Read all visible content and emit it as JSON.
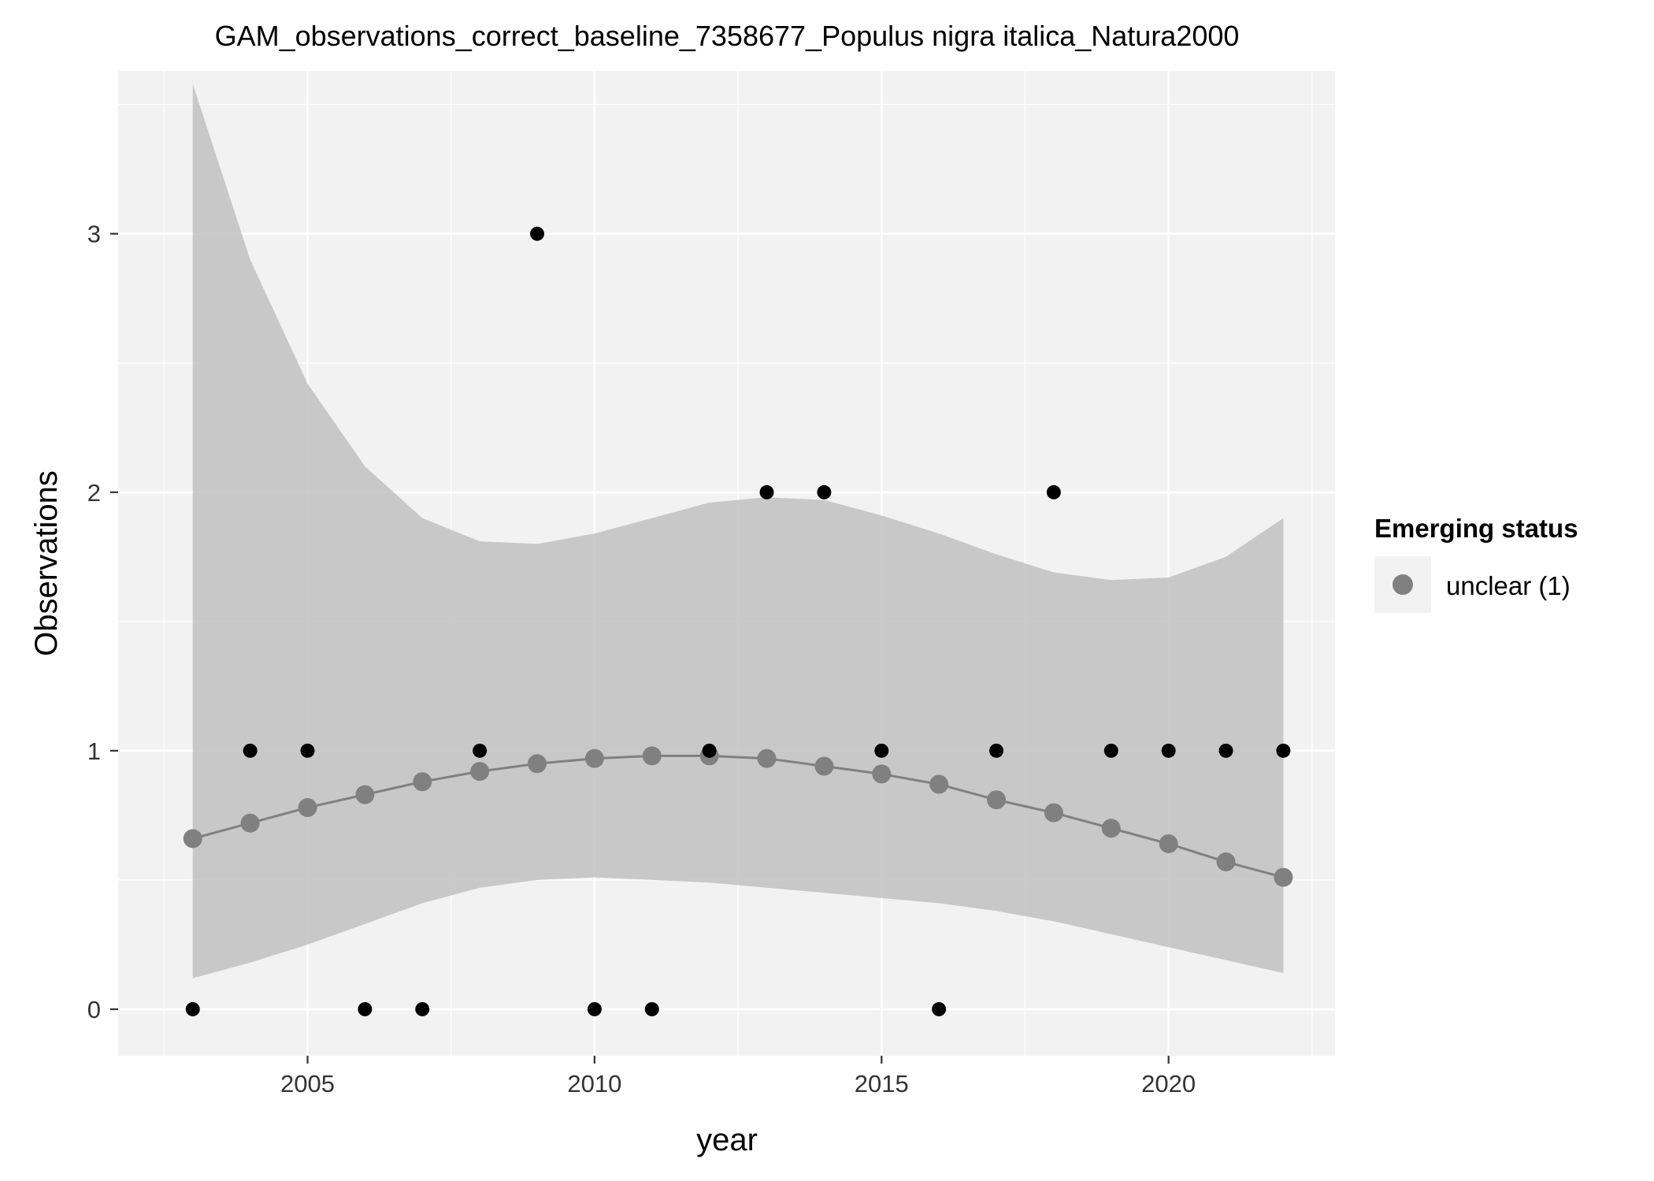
{
  "chart_data": {
    "type": "scatter",
    "title": "GAM_observations_correct_baseline_7358677_Populus nigra italica_Natura2000",
    "xlabel": "year",
    "ylabel": "Observations",
    "xlim": [
      2001.7,
      2022.9
    ],
    "ylim": [
      -0.18,
      3.63
    ],
    "x_ticks": [
      2005,
      2010,
      2015,
      2020
    ],
    "y_ticks": [
      0,
      1,
      2,
      3
    ],
    "grid": true,
    "legend": {
      "title": "Emerging status",
      "position": "right",
      "entries": [
        {
          "label": "unclear (1)",
          "color": "#808080"
        }
      ]
    },
    "colors": {
      "panel_background": "#f2f2f2",
      "grid": "#ffffff",
      "observed_points": "#000000",
      "fit_line_and_points": "#808080",
      "confidence_band": "#bdbdbd"
    },
    "observed": {
      "x": [
        2003,
        2004,
        2005,
        2006,
        2007,
        2008,
        2009,
        2010,
        2011,
        2012,
        2013,
        2014,
        2015,
        2016,
        2017,
        2018,
        2019,
        2020,
        2021,
        2022
      ],
      "y": [
        0,
        1,
        1,
        0,
        0,
        1,
        3,
        0,
        0,
        1,
        2,
        2,
        1,
        0,
        1,
        2,
        1,
        1,
        1,
        1
      ]
    },
    "series": [
      {
        "name": "unclear (1)",
        "x": [
          2003,
          2004,
          2005,
          2006,
          2007,
          2008,
          2009,
          2010,
          2011,
          2012,
          2013,
          2014,
          2015,
          2016,
          2017,
          2018,
          2019,
          2020,
          2021,
          2022
        ],
        "fit": [
          0.66,
          0.72,
          0.78,
          0.83,
          0.88,
          0.92,
          0.95,
          0.97,
          0.98,
          0.98,
          0.97,
          0.94,
          0.91,
          0.87,
          0.81,
          0.76,
          0.7,
          0.64,
          0.57,
          0.51
        ],
        "lower": [
          0.12,
          0.18,
          0.25,
          0.33,
          0.41,
          0.47,
          0.5,
          0.51,
          0.5,
          0.49,
          0.47,
          0.45,
          0.43,
          0.41,
          0.38,
          0.34,
          0.29,
          0.24,
          0.19,
          0.14
        ],
        "upper": [
          3.58,
          2.9,
          2.42,
          2.1,
          1.9,
          1.81,
          1.8,
          1.84,
          1.9,
          1.96,
          1.98,
          1.97,
          1.91,
          1.84,
          1.76,
          1.69,
          1.66,
          1.67,
          1.75,
          1.9
        ]
      }
    ]
  }
}
